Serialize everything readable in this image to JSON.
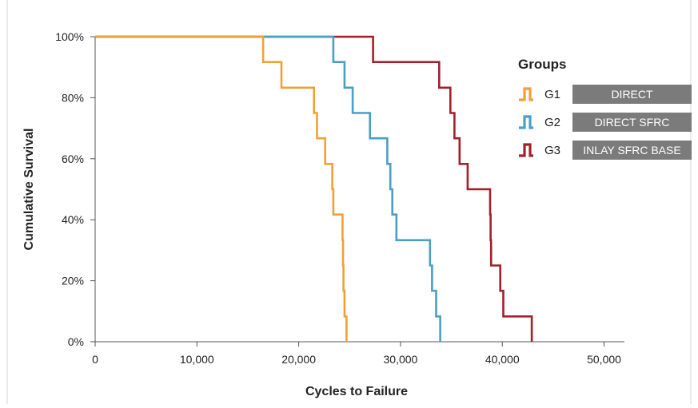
{
  "chart_data": {
    "type": "line",
    "title": "",
    "xlabel": "Cycles to Failure",
    "ylabel": "Cumulative Survival",
    "xlim": [
      0,
      52000
    ],
    "ylim": [
      0,
      100
    ],
    "x_ticks": [
      "0",
      "10,000",
      "20,000",
      "30,000",
      "40,000",
      "50,000"
    ],
    "x_tick_values": [
      0,
      10000,
      20000,
      30000,
      40000,
      50000
    ],
    "y_ticks": [
      "0%",
      "20%",
      "40%",
      "60%",
      "80%",
      "100%"
    ],
    "y_tick_values": [
      0,
      20,
      40,
      60,
      80,
      100
    ],
    "step": true,
    "grid": false,
    "legend_title": "Groups",
    "legend_position": "right",
    "series": [
      {
        "name": "G1",
        "description": "DIRECT",
        "color": "#f0a038",
        "points": [
          [
            0,
            100
          ],
          [
            16500,
            91.7
          ],
          [
            18300,
            83.3
          ],
          [
            21500,
            75
          ],
          [
            21800,
            66.7
          ],
          [
            22600,
            58.3
          ],
          [
            23300,
            50
          ],
          [
            23400,
            41.7
          ],
          [
            24300,
            33.3
          ],
          [
            24350,
            25
          ],
          [
            24400,
            16.7
          ],
          [
            24500,
            8.3
          ],
          [
            24700,
            0
          ]
        ]
      },
      {
        "name": "G2",
        "description": "DIRECT SFRC",
        "color": "#4a9fc2",
        "points": [
          [
            0,
            100
          ],
          [
            23400,
            91.7
          ],
          [
            24500,
            83.3
          ],
          [
            25300,
            75
          ],
          [
            27000,
            66.7
          ],
          [
            28700,
            58.3
          ],
          [
            29000,
            50
          ],
          [
            29200,
            41.7
          ],
          [
            29600,
            33.3
          ],
          [
            32900,
            25
          ],
          [
            33100,
            16.7
          ],
          [
            33500,
            8.3
          ],
          [
            33900,
            0
          ]
        ]
      },
      {
        "name": "G3",
        "description": "INLAY SFRC BASE",
        "color": "#a3202b",
        "points": [
          [
            0,
            100
          ],
          [
            27300,
            91.7
          ],
          [
            33800,
            83.3
          ],
          [
            34900,
            75
          ],
          [
            35300,
            66.7
          ],
          [
            35800,
            58.3
          ],
          [
            36600,
            50
          ],
          [
            38800,
            41.7
          ],
          [
            38850,
            33.3
          ],
          [
            38900,
            25
          ],
          [
            39800,
            16.7
          ],
          [
            40100,
            8.3
          ],
          [
            42900,
            0
          ]
        ]
      }
    ]
  }
}
